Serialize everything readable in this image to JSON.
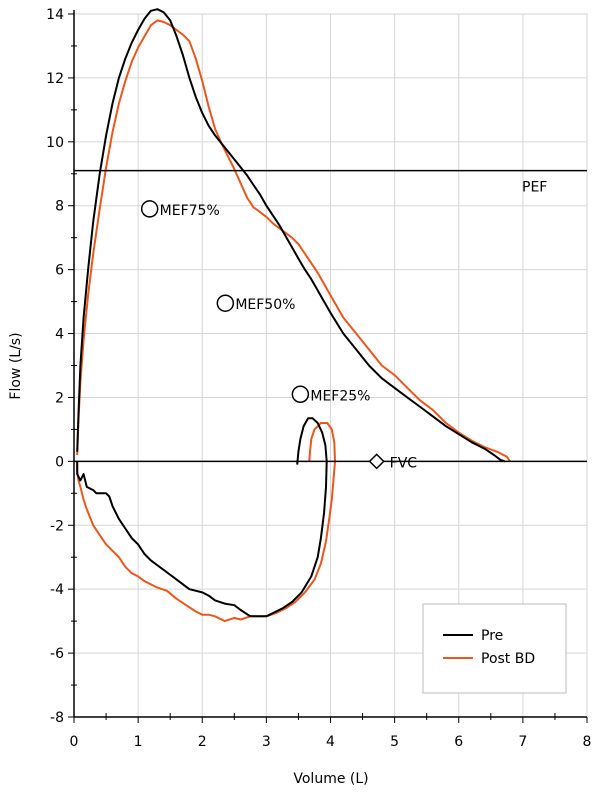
{
  "chart_data": {
    "type": "line",
    "title": "",
    "xlabel": "Volume (L)",
    "ylabel": "Flow (L/s)",
    "xlim": [
      0,
      8
    ],
    "ylim": [
      -8,
      14
    ],
    "x_ticks": [
      0,
      1,
      2,
      3,
      4,
      5,
      6,
      7,
      8
    ],
    "y_ticks": [
      -8,
      -6,
      -4,
      -2,
      0,
      2,
      4,
      6,
      8,
      10,
      12,
      14
    ],
    "x_tick_labels": [
      "0",
      "1",
      "2",
      "3",
      "4",
      "5",
      "6",
      "7",
      "8"
    ],
    "y_tick_labels": [
      "-8",
      "-6",
      "-4",
      "-2",
      "0",
      "2",
      "4",
      "6",
      "8",
      "10",
      "12",
      "14"
    ],
    "grid": true,
    "legend_position": "bottom-right",
    "reference_lines": [
      {
        "label": "PEF",
        "y": 9.1
      },
      {
        "label": "",
        "y": 0
      }
    ],
    "markers": [
      {
        "label": "MEF75%",
        "shape": "circle",
        "x": 1.18,
        "y": 7.9
      },
      {
        "label": "MEF50%",
        "shape": "circle",
        "x": 2.36,
        "y": 4.95
      },
      {
        "label": "MEF25%",
        "shape": "circle",
        "x": 3.53,
        "y": 2.1
      },
      {
        "label": "FVC",
        "shape": "diamond",
        "x": 4.72,
        "y": 0
      }
    ],
    "series": [
      {
        "name": "Pre",
        "color": "#000000",
        "points": [
          [
            0.05,
            0.3
          ],
          [
            0.07,
            1.5
          ],
          [
            0.1,
            3.0
          ],
          [
            0.15,
            4.5
          ],
          [
            0.22,
            6.0
          ],
          [
            0.3,
            7.5
          ],
          [
            0.4,
            9.0
          ],
          [
            0.5,
            10.2
          ],
          [
            0.6,
            11.2
          ],
          [
            0.7,
            12.0
          ],
          [
            0.8,
            12.6
          ],
          [
            0.9,
            13.1
          ],
          [
            1.0,
            13.5
          ],
          [
            1.1,
            13.85
          ],
          [
            1.2,
            14.1
          ],
          [
            1.3,
            14.15
          ],
          [
            1.4,
            14.05
          ],
          [
            1.5,
            13.8
          ],
          [
            1.6,
            13.3
          ],
          [
            1.7,
            12.7
          ],
          [
            1.8,
            12.0
          ],
          [
            1.9,
            11.4
          ],
          [
            2.0,
            10.9
          ],
          [
            2.1,
            10.5
          ],
          [
            2.2,
            10.2
          ],
          [
            2.3,
            9.95
          ],
          [
            2.4,
            9.7
          ],
          [
            2.5,
            9.45
          ],
          [
            2.6,
            9.2
          ],
          [
            2.7,
            8.95
          ],
          [
            2.8,
            8.65
          ],
          [
            2.9,
            8.35
          ],
          [
            3.0,
            8.0
          ],
          [
            3.1,
            7.7
          ],
          [
            3.2,
            7.4
          ],
          [
            3.3,
            7.05
          ],
          [
            3.4,
            6.7
          ],
          [
            3.5,
            6.35
          ],
          [
            3.6,
            6.0
          ],
          [
            3.7,
            5.7
          ],
          [
            3.8,
            5.35
          ],
          [
            3.9,
            5.0
          ],
          [
            4.0,
            4.65
          ],
          [
            4.2,
            4.0
          ],
          [
            4.4,
            3.5
          ],
          [
            4.6,
            3.0
          ],
          [
            4.8,
            2.6
          ],
          [
            5.0,
            2.3
          ],
          [
            5.2,
            2.0
          ],
          [
            5.4,
            1.7
          ],
          [
            5.6,
            1.4
          ],
          [
            5.8,
            1.1
          ],
          [
            6.0,
            0.85
          ],
          [
            6.2,
            0.6
          ],
          [
            6.4,
            0.4
          ],
          [
            6.55,
            0.2
          ],
          [
            6.65,
            0.05
          ],
          [
            6.72,
            0.0
          ]
        ],
        "inspiratory_points": [
          [
            0.05,
            0.0
          ],
          [
            0.05,
            -0.4
          ],
          [
            0.1,
            -0.6
          ],
          [
            0.15,
            -0.4
          ],
          [
            0.2,
            -0.8
          ],
          [
            0.3,
            -0.9
          ],
          [
            0.35,
            -1.0
          ],
          [
            0.45,
            -1.0
          ],
          [
            0.5,
            -1.0
          ],
          [
            0.55,
            -1.1
          ],
          [
            0.6,
            -1.4
          ],
          [
            0.7,
            -1.8
          ],
          [
            0.8,
            -2.1
          ],
          [
            0.9,
            -2.4
          ],
          [
            1.0,
            -2.6
          ],
          [
            1.1,
            -2.9
          ],
          [
            1.2,
            -3.1
          ],
          [
            1.4,
            -3.4
          ],
          [
            1.6,
            -3.7
          ],
          [
            1.8,
            -4.0
          ],
          [
            2.0,
            -4.1
          ],
          [
            2.1,
            -4.2
          ],
          [
            2.2,
            -4.35
          ],
          [
            2.35,
            -4.45
          ],
          [
            2.5,
            -4.5
          ],
          [
            2.6,
            -4.65
          ],
          [
            2.75,
            -4.85
          ],
          [
            2.9,
            -4.85
          ],
          [
            3.0,
            -4.85
          ],
          [
            3.1,
            -4.75
          ],
          [
            3.25,
            -4.6
          ],
          [
            3.4,
            -4.4
          ],
          [
            3.55,
            -4.1
          ],
          [
            3.7,
            -3.6
          ],
          [
            3.8,
            -3.0
          ],
          [
            3.85,
            -2.4
          ],
          [
            3.9,
            -1.6
          ],
          [
            3.93,
            -0.8
          ],
          [
            3.94,
            0.0
          ],
          [
            3.92,
            0.5
          ],
          [
            3.87,
            0.9
          ],
          [
            3.8,
            1.2
          ],
          [
            3.72,
            1.35
          ],
          [
            3.65,
            1.35
          ],
          [
            3.58,
            1.1
          ],
          [
            3.53,
            0.7
          ],
          [
            3.5,
            0.3
          ],
          [
            3.48,
            -0.1
          ]
        ]
      },
      {
        "name": "Post BD",
        "color": "#e8581e",
        "points": [
          [
            0.05,
            0.2
          ],
          [
            0.07,
            1.3
          ],
          [
            0.1,
            2.5
          ],
          [
            0.15,
            3.8
          ],
          [
            0.22,
            5.2
          ],
          [
            0.3,
            6.5
          ],
          [
            0.4,
            7.9
          ],
          [
            0.5,
            9.2
          ],
          [
            0.6,
            10.3
          ],
          [
            0.7,
            11.2
          ],
          [
            0.8,
            11.9
          ],
          [
            0.9,
            12.5
          ],
          [
            1.0,
            12.95
          ],
          [
            1.1,
            13.3
          ],
          [
            1.2,
            13.65
          ],
          [
            1.3,
            13.8
          ],
          [
            1.4,
            13.75
          ],
          [
            1.5,
            13.65
          ],
          [
            1.6,
            13.5
          ],
          [
            1.7,
            13.35
          ],
          [
            1.8,
            13.15
          ],
          [
            1.9,
            12.6
          ],
          [
            2.0,
            11.9
          ],
          [
            2.1,
            11.1
          ],
          [
            2.2,
            10.4
          ],
          [
            2.3,
            9.95
          ],
          [
            2.4,
            9.55
          ],
          [
            2.5,
            9.15
          ],
          [
            2.6,
            8.7
          ],
          [
            2.7,
            8.25
          ],
          [
            2.8,
            7.95
          ],
          [
            2.9,
            7.8
          ],
          [
            3.0,
            7.65
          ],
          [
            3.1,
            7.45
          ],
          [
            3.2,
            7.3
          ],
          [
            3.3,
            7.15
          ],
          [
            3.4,
            7.0
          ],
          [
            3.5,
            6.8
          ],
          [
            3.6,
            6.5
          ],
          [
            3.7,
            6.2
          ],
          [
            3.8,
            5.9
          ],
          [
            3.9,
            5.55
          ],
          [
            4.0,
            5.2
          ],
          [
            4.2,
            4.5
          ],
          [
            4.4,
            4.0
          ],
          [
            4.6,
            3.5
          ],
          [
            4.8,
            3.0
          ],
          [
            5.0,
            2.7
          ],
          [
            5.2,
            2.3
          ],
          [
            5.4,
            1.9
          ],
          [
            5.6,
            1.6
          ],
          [
            5.8,
            1.2
          ],
          [
            6.0,
            0.9
          ],
          [
            6.2,
            0.65
          ],
          [
            6.4,
            0.45
          ],
          [
            6.6,
            0.3
          ],
          [
            6.75,
            0.15
          ],
          [
            6.8,
            0.0
          ]
        ],
        "inspiratory_points": [
          [
            0.05,
            0.0
          ],
          [
            0.05,
            -0.3
          ],
          [
            0.07,
            -0.6
          ],
          [
            0.1,
            -0.8
          ],
          [
            0.15,
            -1.2
          ],
          [
            0.2,
            -1.5
          ],
          [
            0.3,
            -2.0
          ],
          [
            0.4,
            -2.3
          ],
          [
            0.5,
            -2.6
          ],
          [
            0.6,
            -2.8
          ],
          [
            0.7,
            -3.0
          ],
          [
            0.8,
            -3.3
          ],
          [
            0.9,
            -3.5
          ],
          [
            1.0,
            -3.6
          ],
          [
            1.1,
            -3.75
          ],
          [
            1.2,
            -3.85
          ],
          [
            1.3,
            -3.95
          ],
          [
            1.45,
            -4.05
          ],
          [
            1.6,
            -4.3
          ],
          [
            1.75,
            -4.5
          ],
          [
            1.9,
            -4.7
          ],
          [
            2.0,
            -4.8
          ],
          [
            2.1,
            -4.8
          ],
          [
            2.2,
            -4.85
          ],
          [
            2.35,
            -5.0
          ],
          [
            2.5,
            -4.9
          ],
          [
            2.6,
            -4.95
          ],
          [
            2.75,
            -4.85
          ],
          [
            2.9,
            -4.85
          ],
          [
            3.0,
            -4.85
          ],
          [
            3.15,
            -4.75
          ],
          [
            3.3,
            -4.6
          ],
          [
            3.45,
            -4.4
          ],
          [
            3.6,
            -4.1
          ],
          [
            3.75,
            -3.7
          ],
          [
            3.85,
            -3.2
          ],
          [
            3.93,
            -2.5
          ],
          [
            3.98,
            -1.8
          ],
          [
            4.02,
            -1.2
          ],
          [
            4.05,
            -0.5
          ],
          [
            4.07,
            0.0
          ],
          [
            4.06,
            0.6
          ],
          [
            4.02,
            1.0
          ],
          [
            3.95,
            1.2
          ],
          [
            3.85,
            1.2
          ],
          [
            3.75,
            1.0
          ],
          [
            3.7,
            0.7
          ],
          [
            3.68,
            0.3
          ],
          [
            3.67,
            0.0
          ]
        ]
      }
    ]
  }
}
